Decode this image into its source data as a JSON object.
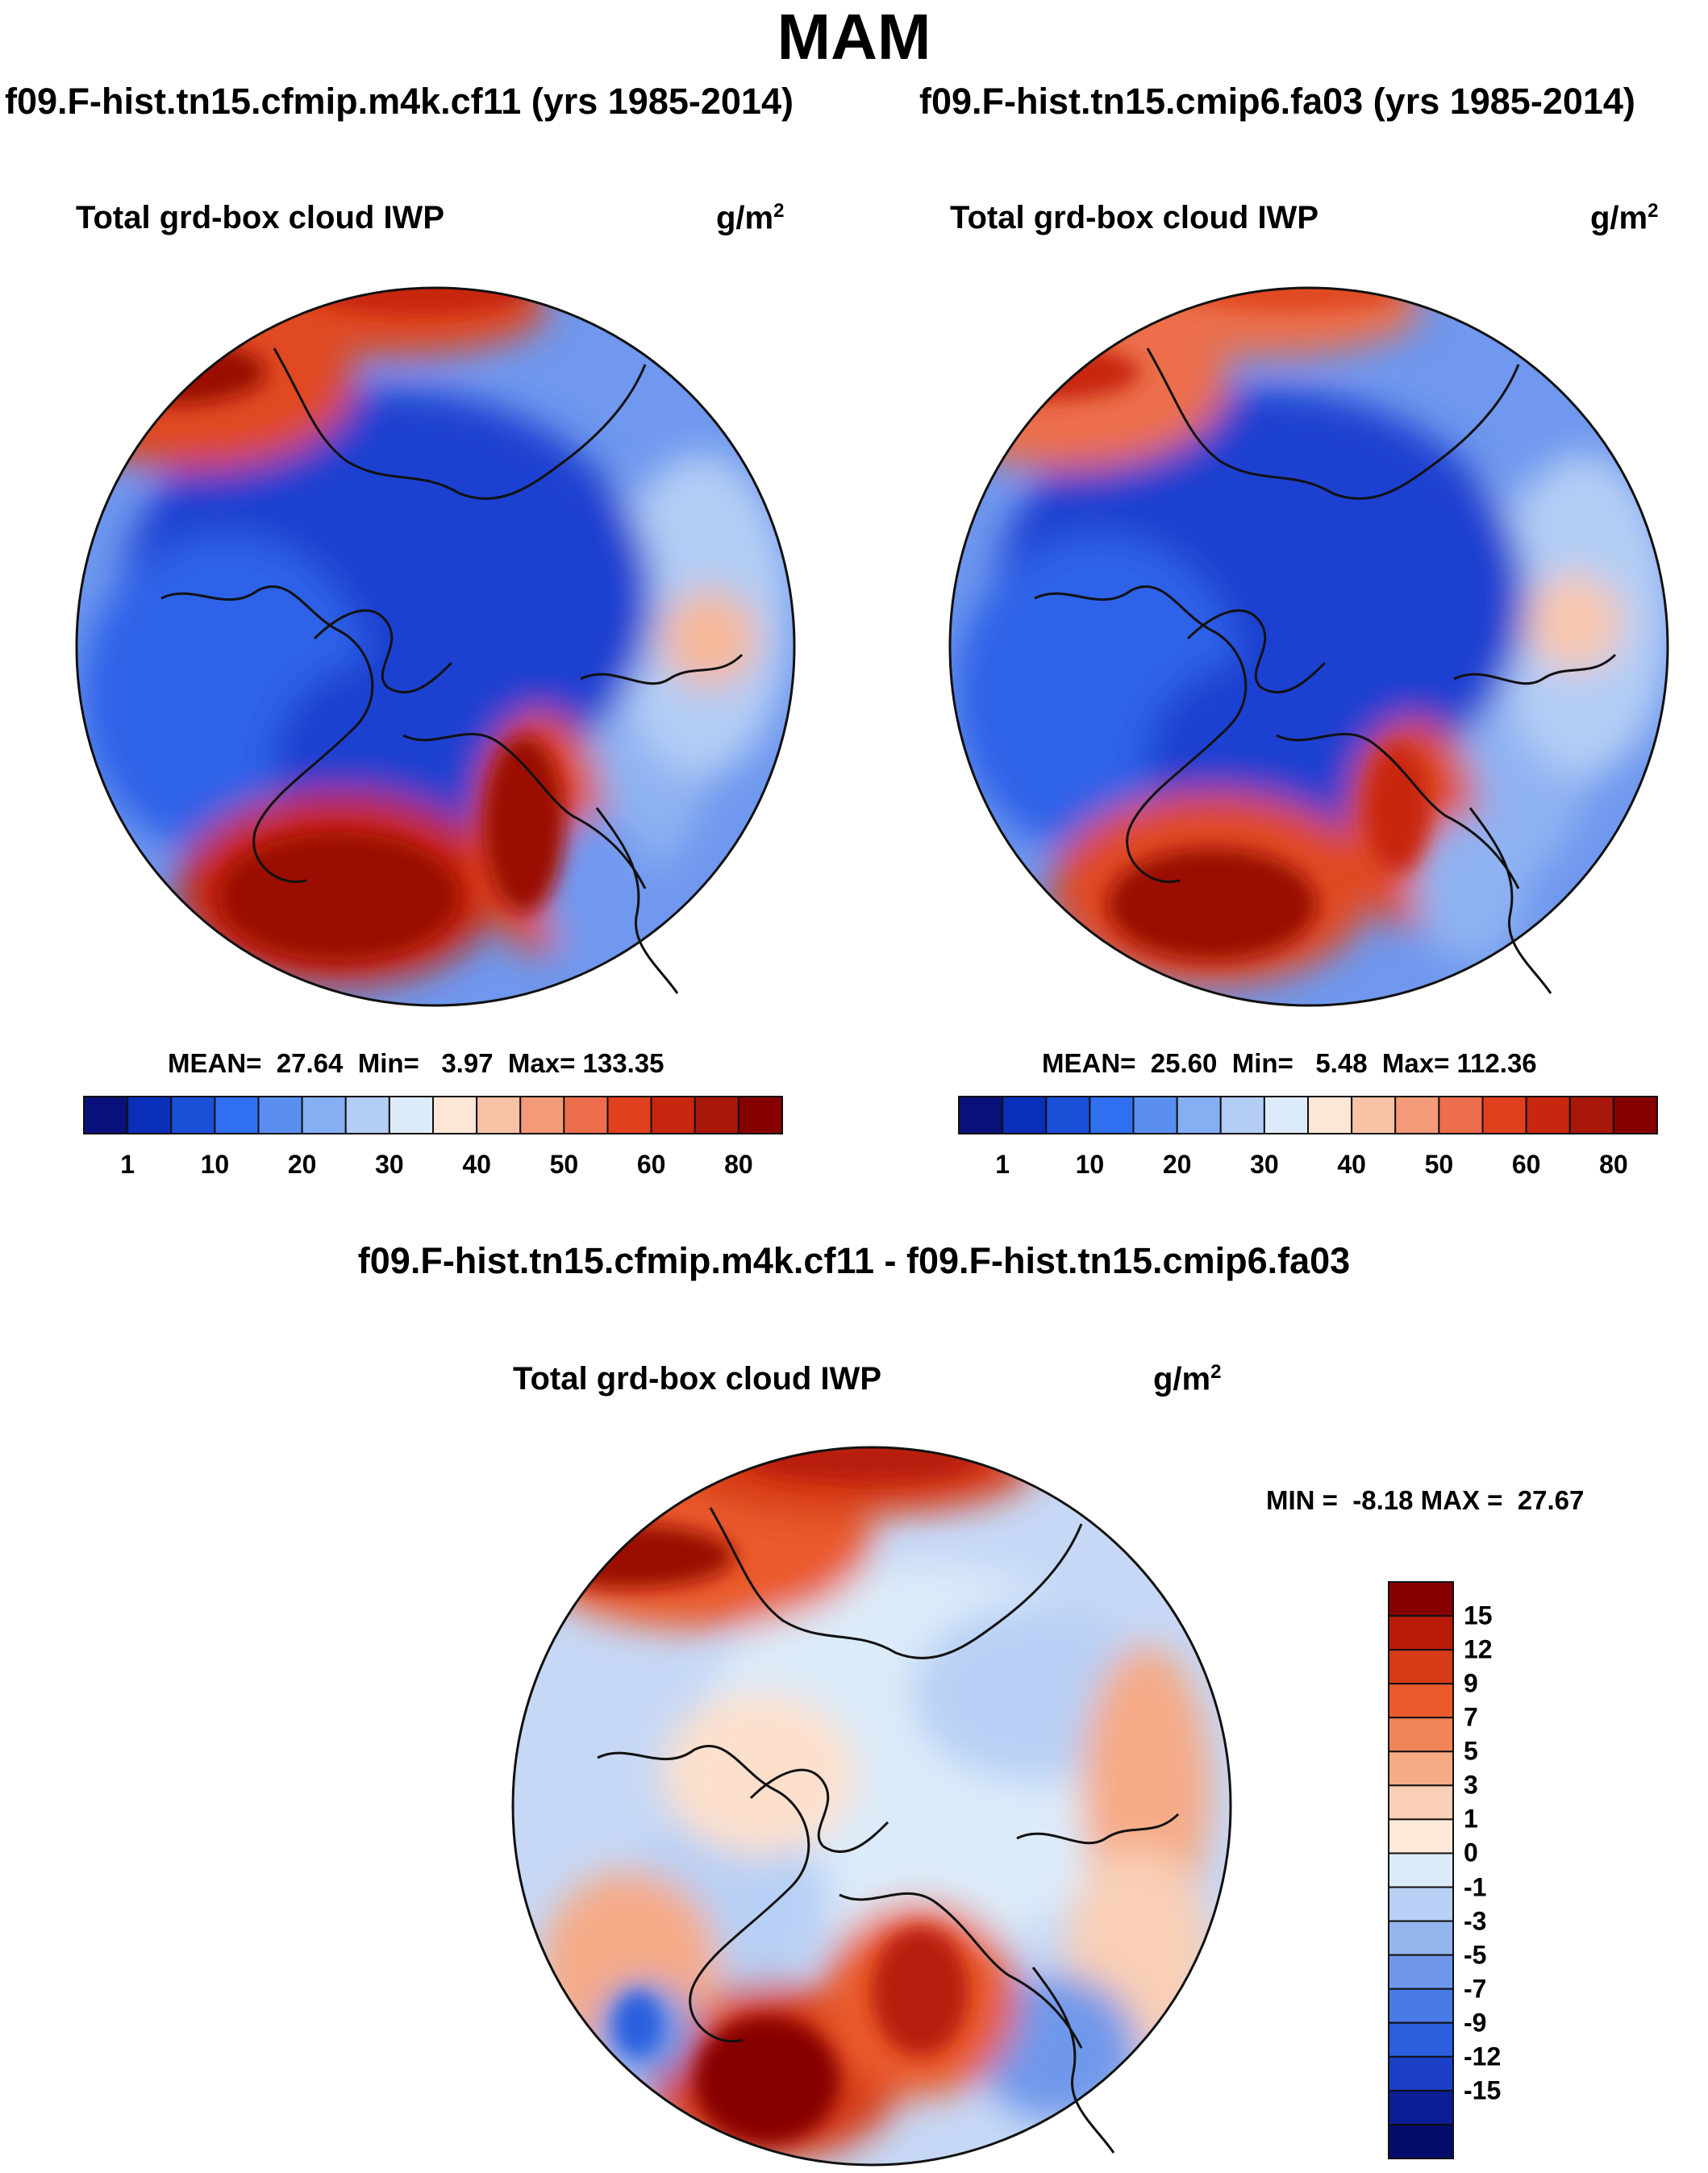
{
  "figure": {
    "season_title": "MAM",
    "left_panel": {
      "case_title": "f09.F-hist.tn15.cfmip.m4k.cf11 (yrs 1985-2014)",
      "variable": "Total grd-box cloud IWP",
      "units_base": "g/m",
      "units_exp": "2",
      "stats": {
        "mean_label": "MEAN=",
        "mean": "27.64",
        "min_label": "Min=",
        "min": "3.97",
        "max_label": "Max=",
        "max": "133.35"
      }
    },
    "right_panel": {
      "case_title": "f09.F-hist.tn15.cmip6.fa03 (yrs 1985-2014)",
      "variable": "Total grd-box cloud IWP",
      "units_base": "g/m",
      "units_exp": "2",
      "stats": {
        "mean_label": "MEAN=",
        "mean": "25.60",
        "min_label": "Min=",
        "min": "5.48",
        "max_label": "Max=",
        "max": "112.36"
      }
    },
    "diff_panel": {
      "diff_title": "f09.F-hist.tn15.cfmip.m4k.cf11 - f09.F-hist.tn15.cmip6.fa03",
      "variable": "Total grd-box cloud IWP",
      "units_base": "g/m",
      "units_exp": "2",
      "min_max_text": "MIN =  -8.18 MAX =  27.67"
    },
    "abs_colorbar": {
      "colors": [
        "#08107a",
        "#0a2fb8",
        "#1a4fd8",
        "#2f6ff0",
        "#5a8ff0",
        "#86aef2",
        "#b4cdf5",
        "#dcebf9",
        "#fde6d6",
        "#f8c2a6",
        "#f39a78",
        "#ec6e4c",
        "#e0401e",
        "#c8260f",
        "#a8180a",
        "#860000"
      ],
      "tick_labels": [
        "1",
        "10",
        "20",
        "30",
        "40",
        "50",
        "60",
        "80"
      ]
    },
    "diff_colorbar": {
      "colors": [
        "#860000",
        "#b81a0a",
        "#d63a16",
        "#ea5a2a",
        "#f2845a",
        "#f6aa86",
        "#f9cfb6",
        "#fde8da",
        "#dcebf9",
        "#b8d0f5",
        "#94b6ee",
        "#6f98ea",
        "#4a7ae6",
        "#2c5ede",
        "#1c3fc8",
        "#0c1e96",
        "#050d6a"
      ],
      "tick_labels": [
        "15",
        "12",
        "9",
        "7",
        "5",
        "3",
        "1",
        "0",
        "-1",
        "-3",
        "-5",
        "-7",
        "-9",
        "-12",
        "-15"
      ]
    },
    "map_colors": {
      "deep_blue": "#1a3fd0",
      "blue": "#2f62e8",
      "mid_blue": "#5a88ee",
      "light_blue": "#9fbef3",
      "pale_blue": "#cfe0f8",
      "pale_orange": "#fbd8c4",
      "orange": "#f08a60",
      "red": "#e04a22",
      "dark_red": "#9a0a02",
      "coast": "#111111"
    }
  }
}
